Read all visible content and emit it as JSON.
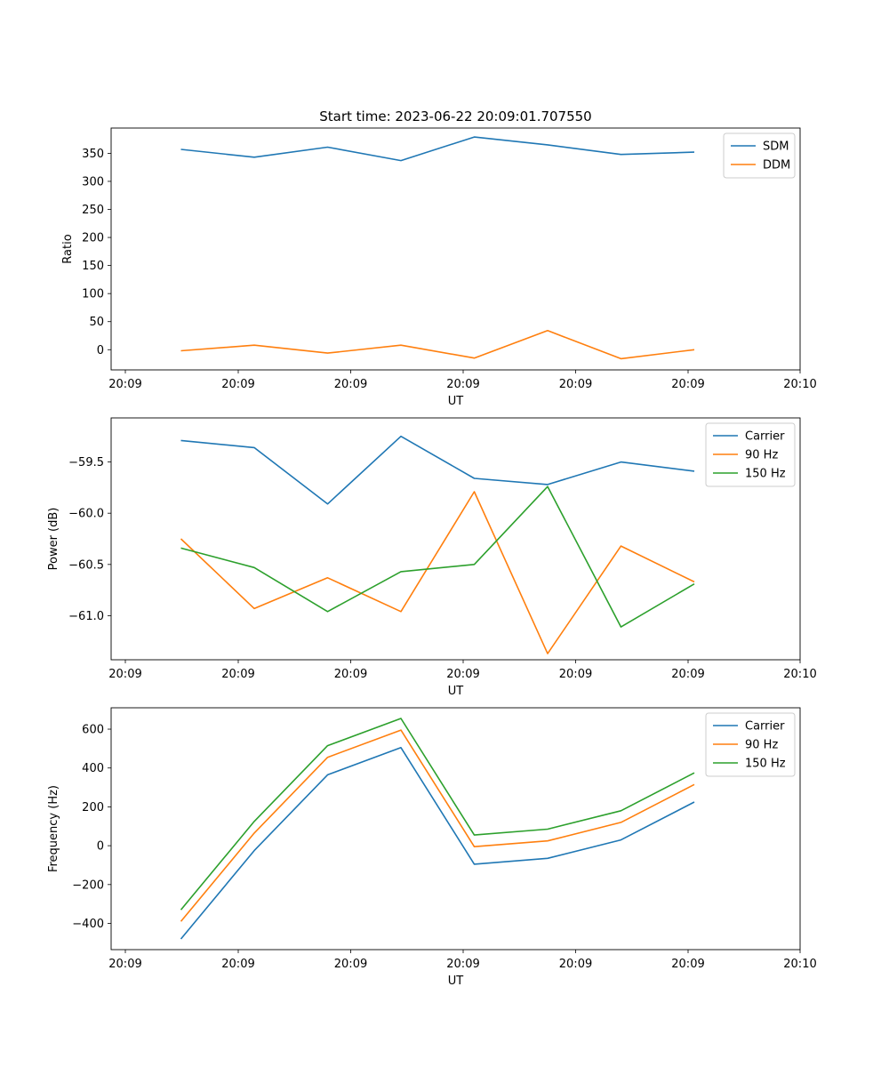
{
  "figure_title": "Start time: 2023-06-22 20:09:01.707550",
  "colors": {
    "blue": "#1f77b4",
    "orange": "#ff7f0e",
    "green": "#2ca02c"
  },
  "chart_data": [
    {
      "type": "line",
      "ylabel": "Ratio",
      "xlabel": "UT",
      "x_tick_labels": [
        "20:09",
        "20:09",
        "20:09",
        "20:09",
        "20:09",
        "20:09",
        "20:10"
      ],
      "y_ticks": [
        0,
        50,
        100,
        150,
        200,
        250,
        300,
        350
      ],
      "ylim": [
        -36,
        395
      ],
      "grid": false,
      "legend_position": "top-right",
      "series": [
        {
          "name": "SDM",
          "color": "#1f77b4",
          "values": [
            357,
            343,
            361,
            337,
            379,
            365,
            348,
            352
          ]
        },
        {
          "name": "DDM",
          "color": "#ff7f0e",
          "values": [
            -2,
            8,
            -6,
            8,
            -15,
            34,
            -16,
            0
          ]
        }
      ]
    },
    {
      "type": "line",
      "ylabel": "Power (dB)",
      "xlabel": "UT",
      "x_tick_labels": [
        "20:09",
        "20:09",
        "20:09",
        "20:09",
        "20:09",
        "20:09",
        "20:10"
      ],
      "y_ticks": [
        -61.0,
        -60.5,
        -60.0,
        -59.5
      ],
      "y_tick_labels": [
        "−61.0",
        "−60.5",
        "−60.0",
        "−59.5"
      ],
      "ylim": [
        -61.43,
        -59.07
      ],
      "grid": false,
      "legend_position": "top-right",
      "series": [
        {
          "name": "Carrier",
          "color": "#1f77b4",
          "values": [
            -59.29,
            -59.36,
            -59.91,
            -59.25,
            -59.66,
            -59.72,
            -59.5,
            -59.59
          ]
        },
        {
          "name": "90 Hz",
          "color": "#ff7f0e",
          "values": [
            -60.25,
            -60.93,
            -60.63,
            -60.96,
            -59.79,
            -61.37,
            -60.32,
            -60.67
          ]
        },
        {
          "name": "150 Hz",
          "color": "#2ca02c",
          "values": [
            -60.34,
            -60.53,
            -60.96,
            -60.57,
            -60.5,
            -59.74,
            -61.11,
            -60.69
          ]
        }
      ]
    },
    {
      "type": "line",
      "ylabel": "Frequency (Hz)",
      "xlabel": "UT",
      "x_tick_labels": [
        "20:09",
        "20:09",
        "20:09",
        "20:09",
        "20:09",
        "20:09",
        "20:10"
      ],
      "y_ticks": [
        -400,
        -200,
        0,
        200,
        400,
        600
      ],
      "y_tick_labels": [
        "−400",
        "−200",
        "0",
        "200",
        "400",
        "600"
      ],
      "ylim": [
        -535,
        710
      ],
      "grid": false,
      "legend_position": "top-right",
      "series": [
        {
          "name": "Carrier",
          "color": "#1f77b4",
          "values": [
            -480,
            -25,
            365,
            505,
            -95,
            -65,
            30,
            225
          ]
        },
        {
          "name": "90 Hz",
          "color": "#ff7f0e",
          "values": [
            -390,
            65,
            455,
            595,
            -5,
            25,
            120,
            315
          ]
        },
        {
          "name": "150 Hz",
          "color": "#2ca02c",
          "values": [
            -330,
            125,
            515,
            655,
            55,
            85,
            180,
            375
          ]
        }
      ]
    }
  ]
}
